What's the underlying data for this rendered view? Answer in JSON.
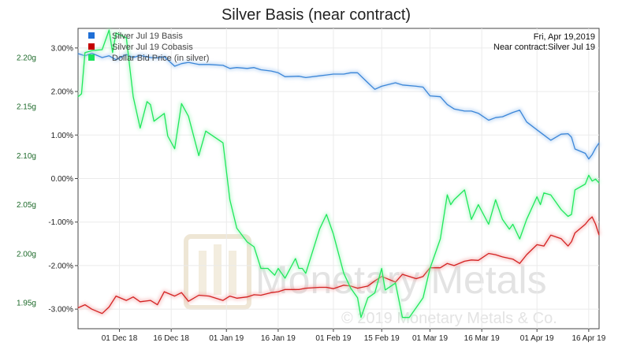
{
  "chart_data": {
    "type": "line",
    "title": "Silver Basis (near contract)",
    "info_date": "Fri, Apr 19,2019",
    "info_contract": "Near contract:Silver Jul 19",
    "watermark_brand": "Monetary Metals",
    "watermark_copyright": "© 2019 Monetary Metals & Co.",
    "x_range": [
      "2018-11-19",
      "2019-04-19"
    ],
    "x_ticks": [
      {
        "date": "2018-12-01",
        "label": "01 Dec 18"
      },
      {
        "date": "2018-12-16",
        "label": "16 Dec 18"
      },
      {
        "date": "2019-01-01",
        "label": "01 Jan 19"
      },
      {
        "date": "2019-01-16",
        "label": "16 Jan 19"
      },
      {
        "date": "2019-02-01",
        "label": "01 Feb 19"
      },
      {
        "date": "2019-02-15",
        "label": "15 Feb 19"
      },
      {
        "date": "2019-03-01",
        "label": "01 Mar 19"
      },
      {
        "date": "2019-03-16",
        "label": "16 Mar 19"
      },
      {
        "date": "2019-04-01",
        "label": "01 Apr 19"
      },
      {
        "date": "2019-04-16",
        "label": "16 Apr 19"
      }
    ],
    "y_left": {
      "unit": "percent",
      "range": [
        -3.45,
        3.45
      ],
      "ticks": [
        3,
        2,
        1,
        0,
        -1,
        -2,
        -3
      ],
      "tick_labels": [
        "3.00%",
        "2.00%",
        "1.00%",
        "0.00%",
        "-1.00%",
        "-2.00%",
        "-3.00%"
      ]
    },
    "y_right": {
      "unit": "grams",
      "range": [
        1.9235,
        2.2297
      ],
      "ticks": [
        2.2,
        2.15,
        2.1,
        2.05,
        2.0,
        1.95
      ],
      "tick_labels": [
        "2.20g",
        "2.15g",
        "2.10g",
        "2.05g",
        "2.00g",
        "1.95g"
      ]
    },
    "legend_placement": "top-left",
    "series": [
      {
        "name": "Silver Jul 19 Basis",
        "color": "#2f7ed8",
        "axis": "left",
        "points": [
          [
            "2018-11-19",
            2.87
          ],
          [
            "2018-11-21",
            2.82
          ],
          [
            "2018-11-23",
            2.88
          ],
          [
            "2018-11-26",
            2.78
          ],
          [
            "2018-11-28",
            2.82
          ],
          [
            "2018-11-30",
            2.73
          ],
          [
            "2018-12-03",
            2.85
          ],
          [
            "2018-12-05",
            2.78
          ],
          [
            "2018-12-07",
            2.83
          ],
          [
            "2018-12-10",
            2.78
          ],
          [
            "2018-12-12",
            2.77
          ],
          [
            "2018-12-14",
            2.8
          ],
          [
            "2018-12-17",
            2.58
          ],
          [
            "2018-12-19",
            2.64
          ],
          [
            "2018-12-21",
            2.67
          ],
          [
            "2018-12-24",
            2.62
          ],
          [
            "2018-12-27",
            2.62
          ],
          [
            "2018-12-31",
            2.6
          ],
          [
            "2019-01-02",
            2.53
          ],
          [
            "2019-01-04",
            2.55
          ],
          [
            "2019-01-07",
            2.53
          ],
          [
            "2019-01-09",
            2.55
          ],
          [
            "2019-01-11",
            2.5
          ],
          [
            "2019-01-14",
            2.47
          ],
          [
            "2019-01-16",
            2.43
          ],
          [
            "2019-01-18",
            2.34
          ],
          [
            "2019-01-22",
            2.35
          ],
          [
            "2019-01-24",
            2.32
          ],
          [
            "2019-01-28",
            2.36
          ],
          [
            "2019-01-30",
            2.38
          ],
          [
            "2019-02-01",
            2.4
          ],
          [
            "2019-02-04",
            2.4
          ],
          [
            "2019-02-06",
            2.43
          ],
          [
            "2019-02-08",
            2.43
          ],
          [
            "2019-02-11",
            2.2
          ],
          [
            "2019-02-13",
            2.05
          ],
          [
            "2019-02-15",
            2.12
          ],
          [
            "2019-02-19",
            2.2
          ],
          [
            "2019-02-21",
            2.15
          ],
          [
            "2019-02-25",
            2.12
          ],
          [
            "2019-02-27",
            2.1
          ],
          [
            "2019-03-01",
            1.9
          ],
          [
            "2019-03-04",
            1.88
          ],
          [
            "2019-03-06",
            1.7
          ],
          [
            "2019-03-08",
            1.6
          ],
          [
            "2019-03-11",
            1.55
          ],
          [
            "2019-03-13",
            1.55
          ],
          [
            "2019-03-15",
            1.5
          ],
          [
            "2019-03-18",
            1.34
          ],
          [
            "2019-03-20",
            1.4
          ],
          [
            "2019-03-22",
            1.42
          ],
          [
            "2019-03-25",
            1.52
          ],
          [
            "2019-03-27",
            1.57
          ],
          [
            "2019-03-29",
            1.3
          ],
          [
            "2019-04-01",
            1.12
          ],
          [
            "2019-04-03",
            1.0
          ],
          [
            "2019-04-05",
            0.88
          ],
          [
            "2019-04-08",
            1.02
          ],
          [
            "2019-04-10",
            1.03
          ],
          [
            "2019-04-11",
            0.95
          ],
          [
            "2019-04-12",
            0.68
          ],
          [
            "2019-04-15",
            0.58
          ],
          [
            "2019-04-16",
            0.45
          ],
          [
            "2019-04-17",
            0.55
          ],
          [
            "2019-04-18",
            0.7
          ],
          [
            "2019-04-19",
            0.82
          ]
        ]
      },
      {
        "name": "Silver Jul 19 Cobasis",
        "color": "#d62728",
        "axis": "left",
        "points": [
          [
            "2018-11-19",
            -2.97
          ],
          [
            "2018-11-21",
            -2.9
          ],
          [
            "2018-11-23",
            -3.0
          ],
          [
            "2018-11-26",
            -3.1
          ],
          [
            "2018-11-28",
            -2.95
          ],
          [
            "2018-11-30",
            -2.7
          ],
          [
            "2018-12-03",
            -2.8
          ],
          [
            "2018-12-05",
            -2.72
          ],
          [
            "2018-12-07",
            -2.83
          ],
          [
            "2018-12-10",
            -2.8
          ],
          [
            "2018-12-12",
            -2.9
          ],
          [
            "2018-12-14",
            -2.6
          ],
          [
            "2018-12-17",
            -2.7
          ],
          [
            "2018-12-19",
            -2.62
          ],
          [
            "2018-12-21",
            -2.82
          ],
          [
            "2018-12-24",
            -2.68
          ],
          [
            "2018-12-27",
            -2.7
          ],
          [
            "2018-12-31",
            -2.8
          ],
          [
            "2019-01-02",
            -2.7
          ],
          [
            "2019-01-04",
            -2.75
          ],
          [
            "2019-01-07",
            -2.72
          ],
          [
            "2019-01-09",
            -2.67
          ],
          [
            "2019-01-11",
            -2.68
          ],
          [
            "2019-01-14",
            -2.62
          ],
          [
            "2019-01-16",
            -2.6
          ],
          [
            "2019-01-18",
            -2.55
          ],
          [
            "2019-01-22",
            -2.55
          ],
          [
            "2019-01-24",
            -2.52
          ],
          [
            "2019-01-28",
            -2.5
          ],
          [
            "2019-01-30",
            -2.5
          ],
          [
            "2019-02-01",
            -2.53
          ],
          [
            "2019-02-04",
            -2.45
          ],
          [
            "2019-02-06",
            -2.47
          ],
          [
            "2019-02-08",
            -2.52
          ],
          [
            "2019-02-11",
            -2.47
          ],
          [
            "2019-02-13",
            -2.35
          ],
          [
            "2019-02-15",
            -2.25
          ],
          [
            "2019-02-19",
            -2.38
          ],
          [
            "2019-02-21",
            -2.2
          ],
          [
            "2019-02-25",
            -2.3
          ],
          [
            "2019-02-27",
            -2.25
          ],
          [
            "2019-03-01",
            -2.05
          ],
          [
            "2019-03-04",
            -2.05
          ],
          [
            "2019-03-06",
            -1.95
          ],
          [
            "2019-03-08",
            -2.0
          ],
          [
            "2019-03-11",
            -1.9
          ],
          [
            "2019-03-13",
            -1.87
          ],
          [
            "2019-03-15",
            -1.88
          ],
          [
            "2019-03-18",
            -1.72
          ],
          [
            "2019-03-20",
            -1.75
          ],
          [
            "2019-03-22",
            -1.8
          ],
          [
            "2019-03-25",
            -1.85
          ],
          [
            "2019-03-27",
            -1.95
          ],
          [
            "2019-03-29",
            -1.75
          ],
          [
            "2019-04-01",
            -1.52
          ],
          [
            "2019-04-03",
            -1.55
          ],
          [
            "2019-04-05",
            -1.3
          ],
          [
            "2019-04-08",
            -1.38
          ],
          [
            "2019-04-10",
            -1.55
          ],
          [
            "2019-04-11",
            -1.45
          ],
          [
            "2019-04-12",
            -1.25
          ],
          [
            "2019-04-15",
            -1.05
          ],
          [
            "2019-04-16",
            -0.95
          ],
          [
            "2019-04-17",
            -0.88
          ],
          [
            "2019-04-18",
            -1.05
          ],
          [
            "2019-04-19",
            -1.3
          ]
        ]
      },
      {
        "name": "Dollar Bid Price (in silver)",
        "color": "#1fe85a",
        "axis": "right",
        "points": [
          [
            "2018-11-19",
            2.16
          ],
          [
            "2018-11-20",
            2.163
          ],
          [
            "2018-11-21",
            2.205
          ],
          [
            "2018-11-23",
            2.207
          ],
          [
            "2018-11-26",
            2.208
          ],
          [
            "2018-11-28",
            2.228
          ],
          [
            "2018-11-29",
            2.205
          ],
          [
            "2018-11-30",
            2.225
          ],
          [
            "2018-12-03",
            2.22
          ],
          [
            "2018-12-05",
            2.16
          ],
          [
            "2018-12-07",
            2.128
          ],
          [
            "2018-12-09",
            2.155
          ],
          [
            "2018-12-10",
            2.152
          ],
          [
            "2018-12-11",
            2.135
          ],
          [
            "2018-12-14",
            2.143
          ],
          [
            "2018-12-15",
            2.12
          ],
          [
            "2018-12-17",
            2.107
          ],
          [
            "2018-12-19",
            2.153
          ],
          [
            "2018-12-21",
            2.14
          ],
          [
            "2018-12-24",
            2.1
          ],
          [
            "2018-12-26",
            2.125
          ],
          [
            "2018-12-31",
            2.113
          ],
          [
            "2019-01-02",
            2.055
          ],
          [
            "2019-01-04",
            2.026
          ],
          [
            "2019-01-07",
            2.012
          ],
          [
            "2019-01-09",
            2.007
          ],
          [
            "2019-01-11",
            1.985
          ],
          [
            "2019-01-13",
            1.985
          ],
          [
            "2019-01-15",
            1.978
          ],
          [
            "2019-01-16",
            1.985
          ],
          [
            "2019-01-18",
            1.975
          ],
          [
            "2019-01-21",
            1.995
          ],
          [
            "2019-01-22",
            1.985
          ],
          [
            "2019-01-23",
            1.985
          ],
          [
            "2019-01-24",
            1.98
          ],
          [
            "2019-01-28",
            2.025
          ],
          [
            "2019-01-30",
            2.04
          ],
          [
            "2019-02-01",
            2.02
          ],
          [
            "2019-02-04",
            1.98
          ],
          [
            "2019-02-06",
            1.965
          ],
          [
            "2019-02-08",
            1.955
          ],
          [
            "2019-02-09",
            1.935
          ],
          [
            "2019-02-11",
            1.955
          ],
          [
            "2019-02-13",
            1.96
          ],
          [
            "2019-02-15",
            1.985
          ],
          [
            "2019-02-16",
            1.963
          ],
          [
            "2019-02-19",
            1.97
          ],
          [
            "2019-02-21",
            1.935
          ],
          [
            "2019-02-23",
            1.935
          ],
          [
            "2019-02-25",
            1.945
          ],
          [
            "2019-02-27",
            1.955
          ],
          [
            "2019-03-01",
            1.985
          ],
          [
            "2019-03-04",
            2.015
          ],
          [
            "2019-03-06",
            2.06
          ],
          [
            "2019-03-07",
            2.05
          ],
          [
            "2019-03-08",
            2.055
          ],
          [
            "2019-03-11",
            2.065
          ],
          [
            "2019-03-13",
            2.035
          ],
          [
            "2019-03-15",
            2.05
          ],
          [
            "2019-03-18",
            2.03
          ],
          [
            "2019-03-20",
            2.055
          ],
          [
            "2019-03-22",
            2.035
          ],
          [
            "2019-03-24",
            2.025
          ],
          [
            "2019-03-25",
            2.03
          ],
          [
            "2019-03-27",
            2.015
          ],
          [
            "2019-03-29",
            2.035
          ],
          [
            "2019-04-01",
            2.058
          ],
          [
            "2019-04-02",
            2.05
          ],
          [
            "2019-04-03",
            2.062
          ],
          [
            "2019-04-05",
            2.06
          ],
          [
            "2019-04-08",
            2.045
          ],
          [
            "2019-04-10",
            2.038
          ],
          [
            "2019-04-11",
            2.04
          ],
          [
            "2019-04-12",
            2.065
          ],
          [
            "2019-04-15",
            2.071
          ],
          [
            "2019-04-16",
            2.08
          ],
          [
            "2019-04-17",
            2.074
          ],
          [
            "2019-04-18",
            2.076
          ],
          [
            "2019-04-19",
            2.072
          ]
        ]
      }
    ]
  }
}
